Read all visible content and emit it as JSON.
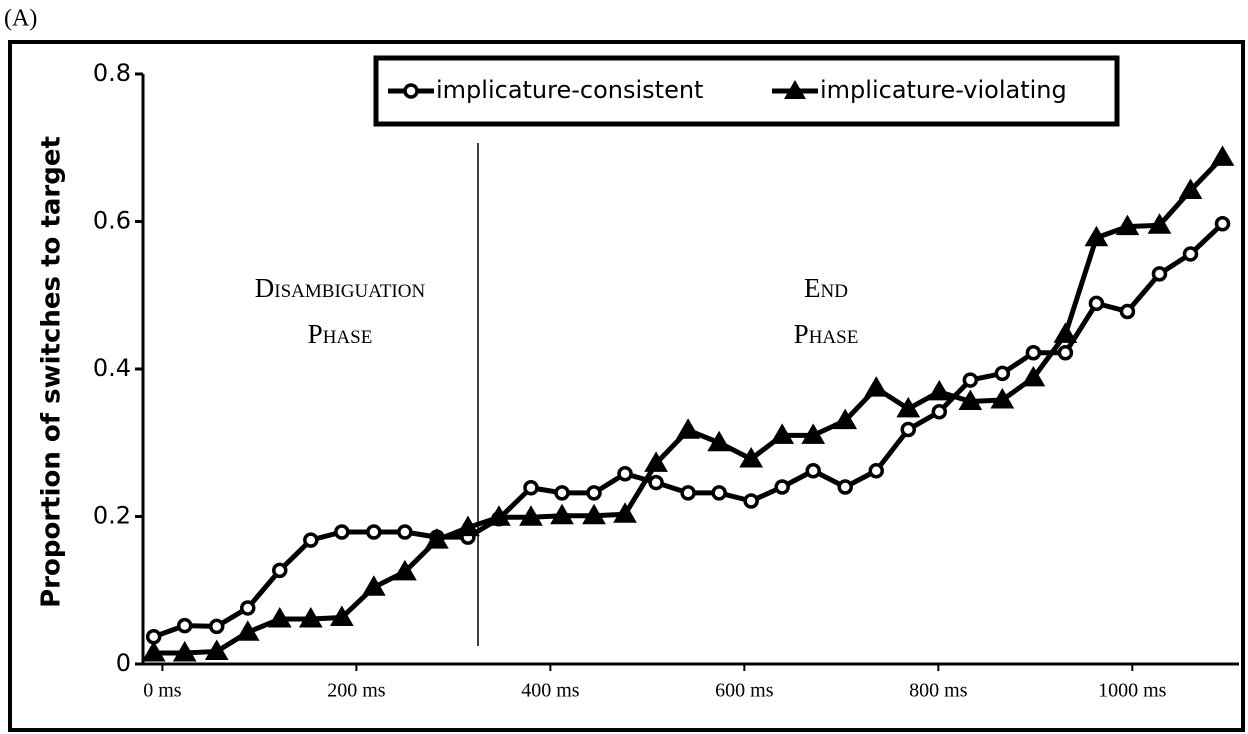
{
  "chart_data": {
    "type": "line",
    "panel_label": "(A)",
    "y_label": "Proportion of switches to target",
    "annotations": [
      [
        "Disambiguation",
        "Phase"
      ],
      [
        "End",
        "Phase"
      ]
    ],
    "x": [
      -9,
      23,
      56,
      88,
      121,
      153,
      185,
      218,
      250,
      283,
      315,
      347,
      380,
      412,
      445,
      477,
      509,
      542,
      574,
      607,
      639,
      671,
      704,
      736,
      769,
      801,
      833,
      866,
      898,
      931,
      963,
      995,
      1028,
      1060,
      1093
    ],
    "series": [
      {
        "name": "implicature-consistent",
        "color": "#000000",
        "marker": "circle",
        "values": [
          0.037,
          0.052,
          0.051,
          0.076,
          0.127,
          0.168,
          0.179,
          0.179,
          0.179,
          0.172,
          0.172,
          0.197,
          0.239,
          0.232,
          0.232,
          0.258,
          0.246,
          0.232,
          0.232,
          0.221,
          0.24,
          0.262,
          0.24,
          0.262,
          0.318,
          0.342,
          0.385,
          0.394,
          0.422,
          0.422,
          0.489,
          0.478,
          0.529,
          0.556,
          0.597
        ]
      },
      {
        "name": "implicature-violating",
        "color": "#000000",
        "marker": "triangle",
        "values": [
          0.015,
          0.015,
          0.017,
          0.043,
          0.061,
          0.061,
          0.063,
          0.104,
          0.125,
          0.168,
          0.185,
          0.199,
          0.199,
          0.201,
          0.201,
          0.203,
          0.272,
          0.317,
          0.3,
          0.278,
          0.31,
          0.31,
          0.33,
          0.374,
          0.346,
          0.369,
          0.356,
          0.358,
          0.388,
          0.447,
          0.578,
          0.593,
          0.595,
          0.642,
          0.687
        ]
      }
    ],
    "xlim": [
      -20,
      1110
    ],
    "xticks": [
      {
        "value": 0,
        "label": "0 ms"
      },
      {
        "value": 200,
        "label": "200 ms"
      },
      {
        "value": 400,
        "label": "400 ms"
      },
      {
        "value": 600,
        "label": "600 ms"
      },
      {
        "value": 800,
        "label": "800 ms"
      },
      {
        "value": 1000,
        "label": "1000 ms"
      }
    ],
    "ylim": [
      0,
      0.8
    ],
    "yticks": [
      0,
      0.2,
      0.4,
      0.6,
      0.8
    ],
    "legend": "top",
    "grid": false
  }
}
